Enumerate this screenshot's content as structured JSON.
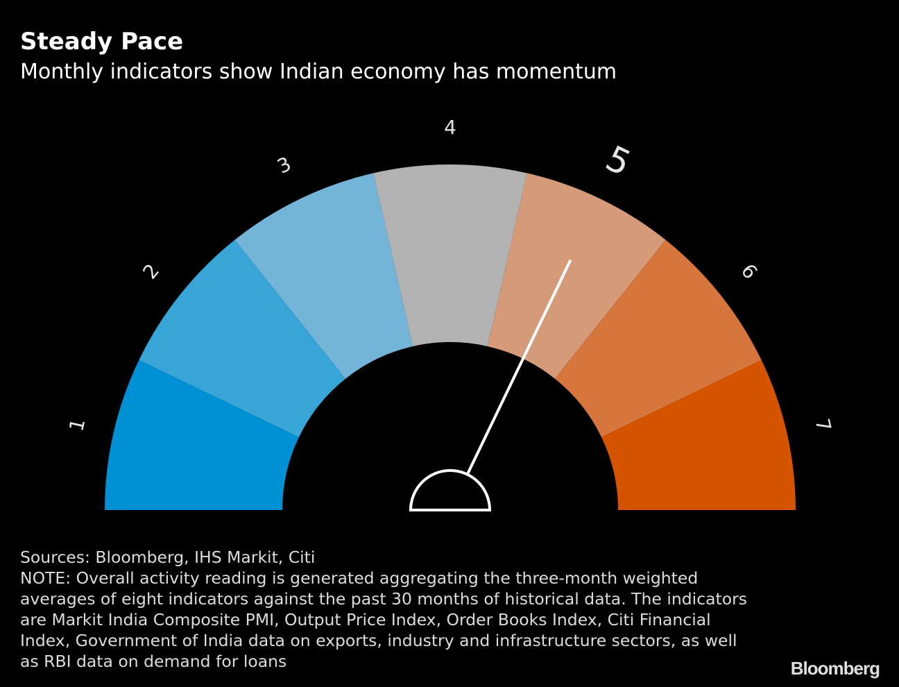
{
  "header": {
    "title": "Steady Pace",
    "subtitle": "Monthly indicators show Indian economy has momentum"
  },
  "chart_data": {
    "type": "gauge",
    "categories": [
      "1",
      "2",
      "3",
      "4",
      "5",
      "6",
      "7"
    ],
    "colors": [
      "#0091d5",
      "#38a5d8",
      "#74b4d8",
      "#b2b2b2",
      "#d59a78",
      "#d6763d",
      "#d65400"
    ],
    "highlighted": "5",
    "needle_value": 4.5,
    "scale_range": [
      0,
      7
    ]
  },
  "footer": {
    "source": "Sources: Bloomberg, IHS Markit, Citi",
    "note": "NOTE: Overall activity reading is generated aggregating the three-month weighted averages of eight indicators against the past 30 months of historical data. The indicators are Markit India Composite PMI, Output Price Index, Order Books Index, Citi Financial Index, Government of India data on exports, industry and infrastructure sectors, as well as RBI data on demand for loans"
  },
  "branding": {
    "logo": "Bloomberg"
  }
}
